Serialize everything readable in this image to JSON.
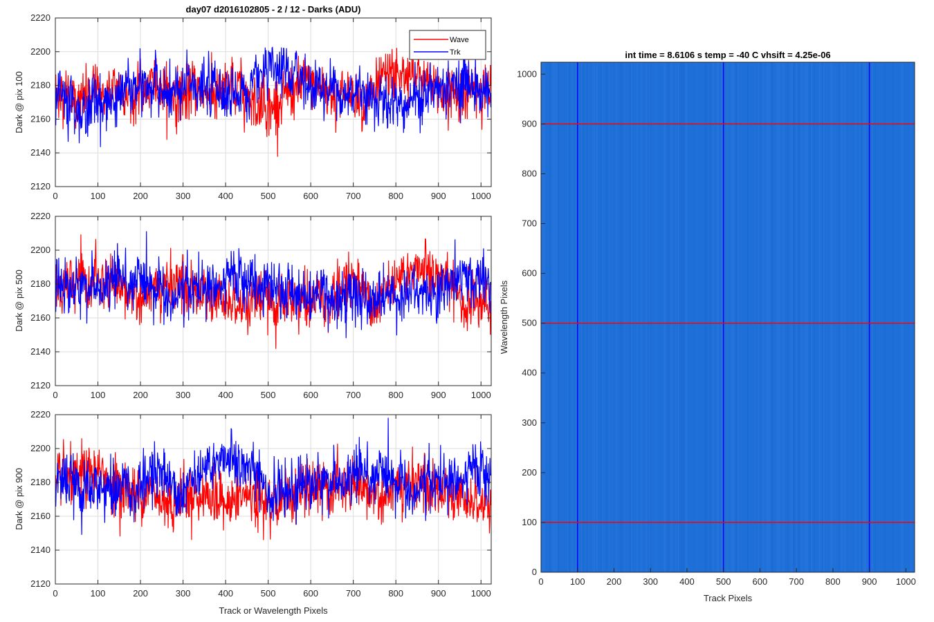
{
  "chart_data": [
    {
      "type": "line",
      "title": "day07 d2016102805 - 2 / 12 - Darks (ADU)",
      "xlabel": "",
      "ylabel": "Dark @ pix 100",
      "xlim": [
        0,
        1024
      ],
      "ylim": [
        2120,
        2220
      ],
      "xticks": [
        "0",
        "100",
        "200",
        "300",
        "400",
        "500",
        "600",
        "700",
        "800",
        "900",
        "1000"
      ],
      "yticks": [
        "2120",
        "2140",
        "2160",
        "2180",
        "2200",
        "2220"
      ],
      "grid": true,
      "legend": "top-right",
      "series": [
        {
          "name": "Wave",
          "color": "#ff0000",
          "mean": 2176,
          "min": 2131,
          "max": 2212
        },
        {
          "name": "Trk",
          "color": "#0000ff",
          "mean": 2177,
          "min": 2133,
          "max": 2203
        }
      ]
    },
    {
      "type": "line",
      "title": "",
      "xlabel": "",
      "ylabel": "Dark @ pix 500",
      "xlim": [
        0,
        1024
      ],
      "ylim": [
        2120,
        2220
      ],
      "xticks": [
        "0",
        "100",
        "200",
        "300",
        "400",
        "500",
        "600",
        "700",
        "800",
        "900",
        "1000"
      ],
      "yticks": [
        "2120",
        "2140",
        "2160",
        "2180",
        "2200",
        "2220"
      ],
      "grid": true,
      "series": [
        {
          "name": "Wave",
          "color": "#ff0000",
          "mean": 2175,
          "min": 2135,
          "max": 2210
        },
        {
          "name": "Trk",
          "color": "#0000ff",
          "mean": 2177,
          "min": 2132,
          "max": 2213
        }
      ]
    },
    {
      "type": "line",
      "title": "",
      "xlabel": "Track or Wavelength Pixels",
      "ylabel": "Dark @ pix 900",
      "xlim": [
        0,
        1024
      ],
      "ylim": [
        2120,
        2220
      ],
      "xticks": [
        "0",
        "100",
        "200",
        "300",
        "400",
        "500",
        "600",
        "700",
        "800",
        "900",
        "1000"
      ],
      "yticks": [
        "2120",
        "2140",
        "2160",
        "2180",
        "2200",
        "2220"
      ],
      "grid": true,
      "series": [
        {
          "name": "Wave",
          "color": "#ff0000",
          "mean": 2175,
          "min": 2133,
          "max": 2210
        },
        {
          "name": "Trk",
          "color": "#0000ff",
          "mean": 2180,
          "min": 2137,
          "max": 2220
        }
      ]
    },
    {
      "type": "heatmap",
      "title": "int time = 8.6106 s    temp = -40 C    vhsift = 4.25e-06",
      "xlabel": "Track Pixels",
      "ylabel": "Wavelength Pixels",
      "xlim": [
        0,
        1024
      ],
      "ylim": [
        0,
        1024
      ],
      "xticks": [
        "0",
        "100",
        "200",
        "300",
        "400",
        "500",
        "600",
        "700",
        "800",
        "900",
        "1000"
      ],
      "yticks": [
        "0",
        "100",
        "200",
        "300",
        "400",
        "500",
        "600",
        "700",
        "800",
        "900",
        "1000"
      ],
      "base_color": "#1f6fd8",
      "overlays": {
        "vertical_lines": {
          "x": [
            100,
            500,
            900
          ],
          "color": "#0000ff"
        },
        "horizontal_lines": {
          "y": [
            100,
            500,
            900
          ],
          "color": "#ff0000"
        }
      }
    }
  ]
}
